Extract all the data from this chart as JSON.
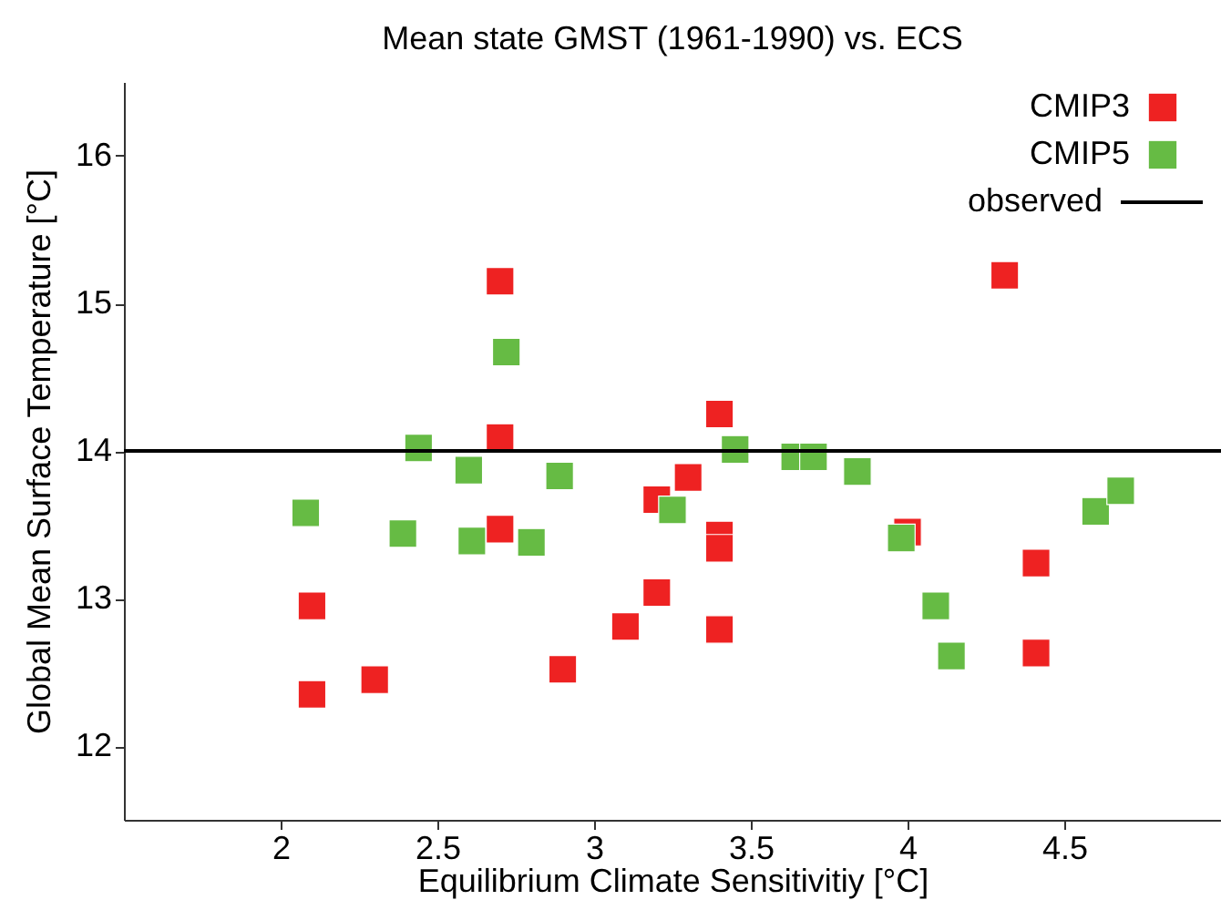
{
  "chart_data": {
    "type": "scatter",
    "title": "Mean state GMST (1961-1990) vs. ECS",
    "xlabel": "Equilibrium Climate Sensitivitiy [°C]",
    "ylabel": "Global Mean Surface Temperature [°C]",
    "xlim": [
      1.5,
      5
    ],
    "ylim": [
      11.5,
      16.5
    ],
    "xticks": [
      2,
      2.5,
      3,
      3.5,
      4,
      4.5
    ],
    "yticks": [
      12,
      13,
      14,
      15,
      16
    ],
    "grid": false,
    "legend": "top right",
    "marker": "square",
    "series": [
      {
        "name": "CMIP3",
        "color": "#ee2222",
        "x": [
          2.7,
          2.7,
          2.7,
          2.1,
          2.1,
          2.3,
          2.9,
          3.1,
          3.2,
          3.2,
          4.31,
          3.4,
          3.3,
          3.4,
          3.4,
          3.4,
          4.0,
          4.41,
          4.41
        ],
        "values": [
          15.15,
          14.09,
          13.47,
          12.95,
          12.35,
          12.45,
          12.52,
          12.81,
          13.04,
          13.67,
          15.19,
          14.25,
          13.82,
          13.43,
          13.34,
          12.79,
          13.45,
          13.24,
          12.63
        ]
      },
      {
        "name": "CMIP5",
        "color": "#66bb44",
        "x": [
          2.08,
          2.44,
          2.6,
          2.39,
          2.61,
          2.72,
          2.8,
          2.89,
          3.25,
          3.45,
          3.64,
          3.7,
          3.84,
          3.98,
          4.09,
          4.14,
          4.6,
          4.68
        ],
        "values": [
          13.58,
          14.02,
          13.87,
          13.44,
          13.39,
          14.67,
          13.38,
          13.83,
          13.6,
          14.01,
          13.96,
          13.96,
          13.86,
          13.41,
          12.95,
          12.61,
          13.59,
          13.73
        ]
      }
    ],
    "ref_lines": [
      {
        "axis": "y",
        "value": 14,
        "label": "observed",
        "color": "#000000",
        "line_style": "solid"
      }
    ]
  }
}
